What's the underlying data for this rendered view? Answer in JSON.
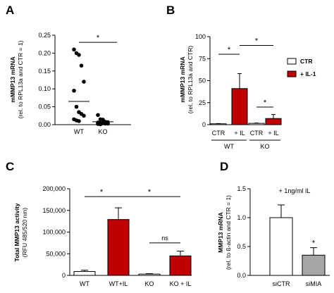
{
  "panels": {
    "a": "A",
    "b": "B",
    "c": "C",
    "d": "D"
  },
  "chart_data": [
    {
      "panel": "A",
      "type": "scatter",
      "ylabel": "mMMP13 mRNA",
      "ylabel2": "(rel. to RPL13a and CTR = 1)",
      "ylim": [
        0,
        0.25
      ],
      "yticks": [
        "0.00",
        "0.05",
        "0.10",
        "0.15",
        "0.20",
        "0.25"
      ],
      "categories": [
        "WT",
        "KO"
      ],
      "points": {
        "WT": [
          0.21,
          0.2,
          0.195,
          0.165,
          0.12,
          0.095,
          0.05,
          0.035,
          0.03,
          0.025,
          0.015,
          0.012,
          0.01
        ],
        "KO": [
          0.027,
          0.015,
          0.014,
          0.008,
          0.007,
          0.006,
          0.005,
          0.004,
          0.003,
          0.003,
          0.002,
          0.001
        ]
      },
      "means": {
        "WT": 0.065,
        "KO": 0.008
      },
      "significance": [
        {
          "from": "WT",
          "to": "KO",
          "label": "*",
          "y": 0.23
        }
      ]
    },
    {
      "panel": "B",
      "type": "bar",
      "ylabel": "mMMP13 mRNA",
      "ylabel2": "(rel. to RPL13a and CTR)",
      "ylim": [
        0,
        100
      ],
      "yticks": [
        "0",
        "25",
        "50",
        "75",
        "100"
      ],
      "categories": [
        "CTR",
        "+ IL",
        "CTR",
        "+ IL"
      ],
      "groups": [
        "WT",
        "KO"
      ],
      "values": [
        1,
        41,
        1.5,
        7
      ],
      "errors": [
        0.3,
        17,
        0.4,
        4.5
      ],
      "legend": [
        {
          "label": "CTR",
          "color": "#ffffff"
        },
        {
          "label": "+ IL-1",
          "color": "#c00000"
        }
      ],
      "significance": [
        {
          "from": 0,
          "to": 1,
          "label": "*",
          "y": 80
        },
        {
          "from": 1,
          "to": 3,
          "label": "*",
          "y": 90
        },
        {
          "from": 2,
          "to": 3,
          "label": "*",
          "y": 20
        }
      ]
    },
    {
      "panel": "C",
      "type": "bar",
      "ylabel": "Total MMP13 activity",
      "ylabel2": "(RFU 485/520 nm)",
      "ylim": [
        0,
        200000
      ],
      "yticks": [
        "0",
        "50,000",
        "100,000",
        "150,000",
        "200,000"
      ],
      "categories": [
        "WT",
        "WT+IL",
        "KO",
        "KO + IL"
      ],
      "values": [
        9000,
        129000,
        3000,
        45000
      ],
      "errors": [
        3000,
        27000,
        1000,
        11000
      ],
      "significance": [
        {
          "from": 0,
          "to": 1,
          "label": "*",
          "y": 182000
        },
        {
          "from": 1,
          "to": 3,
          "label": "*",
          "y": 182000
        },
        {
          "from": 2,
          "to": 3,
          "label": "ns",
          "y": 75000
        }
      ]
    },
    {
      "panel": "D",
      "type": "bar",
      "ylabel": "MMP13 mRNA",
      "ylabel2": "(rel. to ß-actin and CTR = 1)",
      "ylim": [
        0,
        1.5
      ],
      "yticks": [
        "0.0",
        "0.5",
        "1.0",
        "1.5"
      ],
      "categories": [
        "siCTR",
        "siMIA"
      ],
      "values": [
        1.0,
        0.35
      ],
      "errors": [
        0.22,
        0.13
      ],
      "annotation": "+ 1ng/ml IL",
      "significance": [
        {
          "bar": 1,
          "label": "*"
        }
      ]
    }
  ],
  "colors": {
    "red": "#c00000",
    "grey": "#a6a6a6",
    "white": "#ffffff"
  }
}
